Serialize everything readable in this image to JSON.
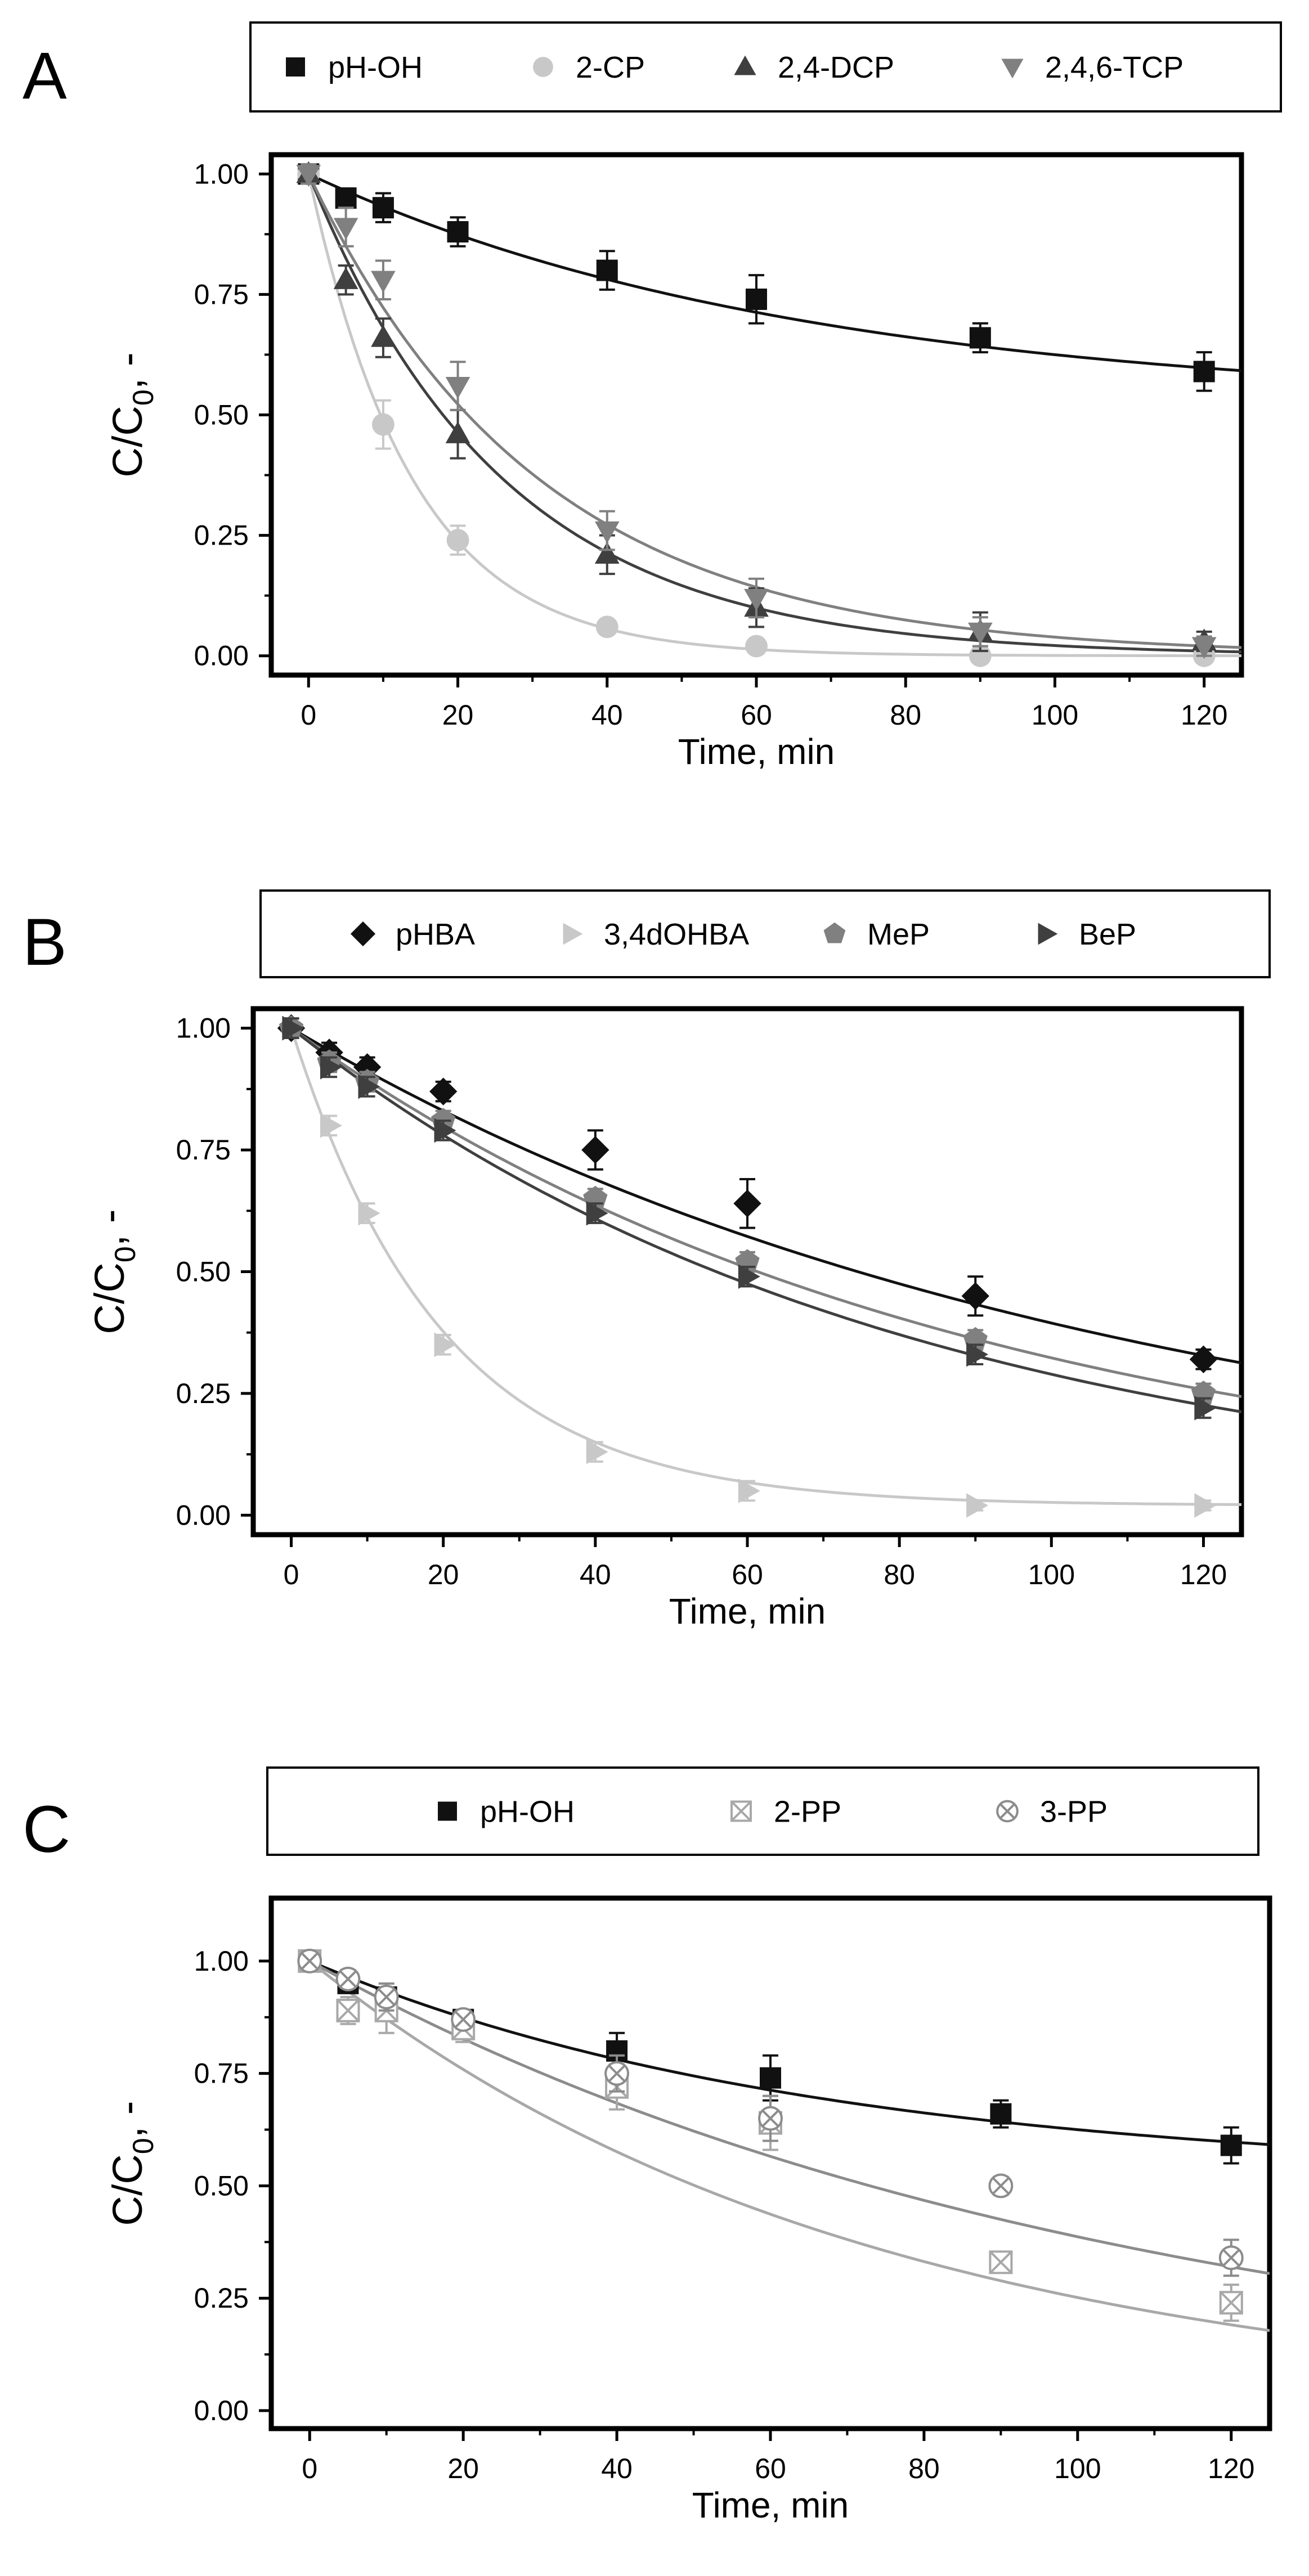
{
  "chart_data": [
    {
      "panel_label": "A",
      "type": "scatter",
      "xlabel": "Time, min",
      "ylabel_main": "C/C",
      "ylabel_sub": "0",
      "ylabel_tail": ", -",
      "xlim": [
        -5,
        125
      ],
      "ylim": [
        -0.04,
        1.04
      ],
      "xticks": [
        0,
        20,
        40,
        60,
        80,
        100,
        120
      ],
      "yticks": [
        0.0,
        0.25,
        0.5,
        0.75,
        1.0
      ],
      "ytick_labels": [
        "0.00",
        "0.25",
        "0.50",
        "0.75",
        "1.00"
      ],
      "legend_position": "top",
      "series": [
        {
          "name": "pH-OH",
          "marker": "square",
          "color": "#111111",
          "x": [
            0,
            5,
            10,
            20,
            40,
            60,
            90,
            120
          ],
          "y": [
            1.0,
            0.95,
            0.93,
            0.88,
            0.8,
            0.74,
            0.66,
            0.59
          ],
          "err": [
            0.02,
            0.02,
            0.03,
            0.03,
            0.04,
            0.05,
            0.03,
            0.04
          ],
          "fit": {
            "c": 0.52,
            "k": 0.0152
          }
        },
        {
          "name": "2-CP",
          "marker": "circle",
          "color": "#c8c8c8",
          "x": [
            0,
            10,
            20,
            40,
            60,
            90,
            120
          ],
          "y": [
            1.0,
            0.48,
            0.24,
            0.06,
            0.02,
            0.0,
            0.0
          ],
          "err": [
            0.02,
            0.05,
            0.03,
            0.01,
            0.01,
            0.01,
            0.01
          ],
          "fit": {
            "c": 0.0,
            "k": 0.072
          }
        },
        {
          "name": "2,4-DCP",
          "marker": "triangle-up",
          "color": "#3f3f3f",
          "x": [
            0,
            5,
            10,
            20,
            40,
            60,
            90,
            120
          ],
          "y": [
            1.0,
            0.78,
            0.66,
            0.46,
            0.21,
            0.1,
            0.05,
            0.03
          ],
          "err": [
            0.02,
            0.03,
            0.04,
            0.05,
            0.04,
            0.04,
            0.04,
            0.02
          ],
          "fit": {
            "c": 0.0,
            "k": 0.0385
          }
        },
        {
          "name": "2,4,6-TCP",
          "marker": "triangle-down",
          "color": "#808080",
          "x": [
            0,
            5,
            10,
            20,
            40,
            60,
            90,
            120
          ],
          "y": [
            1.0,
            0.89,
            0.78,
            0.56,
            0.26,
            0.12,
            0.05,
            0.02
          ],
          "err": [
            0.02,
            0.04,
            0.04,
            0.05,
            0.04,
            0.04,
            0.03,
            0.02
          ],
          "fit": {
            "c": 0.0,
            "k": 0.0325
          }
        }
      ]
    },
    {
      "panel_label": "B",
      "type": "scatter",
      "xlabel": "Time, min",
      "ylabel_main": "C/C",
      "ylabel_sub": "0",
      "ylabel_tail": ", -",
      "xlim": [
        -5,
        125
      ],
      "ylim": [
        -0.04,
        1.04
      ],
      "xticks": [
        0,
        20,
        40,
        60,
        80,
        100,
        120
      ],
      "yticks": [
        0.0,
        0.25,
        0.5,
        0.75,
        1.0
      ],
      "ytick_labels": [
        "0.00",
        "0.25",
        "0.50",
        "0.75",
        "1.00"
      ],
      "legend_position": "top",
      "series": [
        {
          "name": "pHBA",
          "marker": "diamond",
          "color": "#111111",
          "x": [
            0,
            5,
            10,
            20,
            40,
            60,
            90,
            120
          ],
          "y": [
            1.0,
            0.95,
            0.92,
            0.87,
            0.75,
            0.64,
            0.45,
            0.32
          ],
          "err": [
            0.02,
            0.02,
            0.02,
            0.02,
            0.04,
            0.05,
            0.04,
            0.02
          ],
          "fit": {
            "c": 0.0,
            "k": 0.0093
          }
        },
        {
          "name": "3,4dOHBA",
          "marker": "triangle-right",
          "color": "#c8c8c8",
          "x": [
            0,
            5,
            10,
            20,
            40,
            60,
            90,
            120
          ],
          "y": [
            1.0,
            0.8,
            0.62,
            0.35,
            0.13,
            0.05,
            0.02,
            0.02
          ],
          "err": [
            0.02,
            0.02,
            0.02,
            0.02,
            0.02,
            0.02,
            0.01,
            0.01
          ],
          "fit": {
            "c": 0.02,
            "k": 0.0505
          }
        },
        {
          "name": "MeP",
          "marker": "pentagon",
          "color": "#808080",
          "x": [
            0,
            5,
            10,
            20,
            40,
            60,
            90,
            120
          ],
          "y": [
            1.0,
            0.93,
            0.89,
            0.81,
            0.65,
            0.52,
            0.36,
            0.25
          ],
          "err": [
            0.02,
            0.02,
            0.02,
            0.02,
            0.02,
            0.02,
            0.02,
            0.02
          ],
          "fit": {
            "c": 0.0,
            "k": 0.0113
          }
        },
        {
          "name": "BeP",
          "marker": "triangle-right",
          "color": "#3f3f3f",
          "x": [
            0,
            5,
            10,
            20,
            40,
            60,
            90,
            120
          ],
          "y": [
            1.0,
            0.92,
            0.88,
            0.79,
            0.62,
            0.49,
            0.33,
            0.22
          ],
          "err": [
            0.02,
            0.02,
            0.02,
            0.02,
            0.02,
            0.02,
            0.02,
            0.02
          ],
          "fit": {
            "c": 0.0,
            "k": 0.0124
          }
        }
      ]
    },
    {
      "panel_label": "C",
      "type": "scatter",
      "xlabel": "Time, min",
      "ylabel_main": "C/C",
      "ylabel_sub": "0",
      "ylabel_tail": ", -",
      "xlim": [
        -5,
        125
      ],
      "ylim": [
        -0.04,
        1.14
      ],
      "xticks": [
        0,
        20,
        40,
        60,
        80,
        100,
        120
      ],
      "yticks": [
        0.0,
        0.25,
        0.5,
        0.75,
        1.0
      ],
      "ytick_labels": [
        "0.00",
        "0.25",
        "0.50",
        "0.75",
        "1.00"
      ],
      "legend_position": "top",
      "series": [
        {
          "name": "pH-OH",
          "marker": "square",
          "color": "#111111",
          "x": [
            0,
            5,
            10,
            20,
            40,
            60,
            90,
            120
          ],
          "y": [
            1.0,
            0.95,
            0.92,
            0.87,
            0.8,
            0.74,
            0.66,
            0.59
          ],
          "err": [
            0.02,
            0.02,
            0.02,
            0.02,
            0.04,
            0.05,
            0.03,
            0.04
          ],
          "fit": {
            "c": 0.52,
            "k": 0.0152
          }
        },
        {
          "name": "2-PP",
          "marker": "square-x",
          "color": "#a8a8a8",
          "x": [
            0,
            5,
            10,
            20,
            40,
            60,
            90,
            120
          ],
          "y": [
            1.0,
            0.89,
            0.89,
            0.85,
            0.72,
            0.64,
            0.33,
            0.24
          ],
          "err": [
            0.02,
            0.03,
            0.05,
            0.03,
            0.05,
            0.06,
            0.02,
            0.04
          ],
          "fit": {
            "c": 0.0,
            "k": 0.0138
          }
        },
        {
          "name": "3-PP",
          "marker": "circle-x",
          "color": "#8c8c8c",
          "x": [
            0,
            5,
            10,
            20,
            40,
            60,
            90,
            120
          ],
          "y": [
            1.0,
            0.96,
            0.92,
            0.87,
            0.75,
            0.65,
            0.5,
            0.34
          ],
          "err": [
            0.02,
            0.02,
            0.03,
            0.02,
            0.04,
            0.05,
            0.02,
            0.04
          ],
          "fit": {
            "c": 0.0,
            "k": 0.0095
          }
        }
      ]
    }
  ]
}
